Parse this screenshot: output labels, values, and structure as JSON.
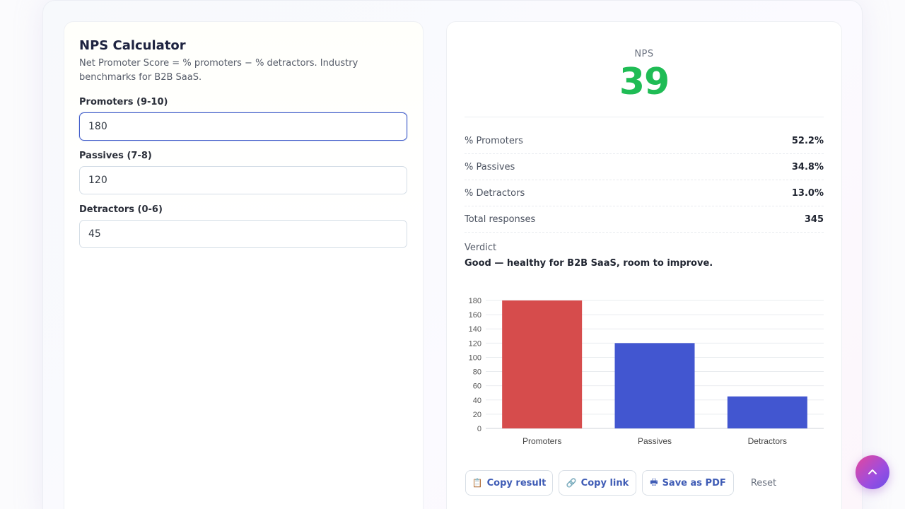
{
  "calculator": {
    "title": "NPS Calculator",
    "description": "Net Promoter Score = % promoters − % detractors. Industry benchmarks for B2B SaaS.",
    "fields": [
      {
        "label": "Promoters (9-10)",
        "value": "180"
      },
      {
        "label": "Passives (7-8)",
        "value": "120"
      },
      {
        "label": "Detractors (0-6)",
        "value": "45"
      }
    ]
  },
  "result": {
    "nps_label": "NPS",
    "nps_value": "39",
    "nps_color": "#1fbc55",
    "stats": [
      {
        "label": "% Promoters",
        "value": "52.2%"
      },
      {
        "label": "% Passives",
        "value": "34.8%"
      },
      {
        "label": "% Detractors",
        "value": "13.0%"
      },
      {
        "label": "Total responses",
        "value": "345"
      }
    ],
    "verdict_label": "Verdict",
    "verdict_text": "Good — healthy for B2B SaaS, room to improve."
  },
  "chart_data": {
    "type": "bar",
    "categories": [
      "Promoters",
      "Passives",
      "Detractors"
    ],
    "values": [
      180,
      120,
      45
    ],
    "colors": [
      "#d64c4c",
      "#4256d0",
      "#4256d0"
    ],
    "yticks": [
      0,
      20,
      40,
      60,
      80,
      100,
      120,
      140,
      160,
      180
    ],
    "ylim": [
      0,
      180
    ],
    "grid": true,
    "title": "",
    "xlabel": "",
    "ylabel": ""
  },
  "actions": {
    "copy_result": "Copy result",
    "copy_link": "Copy link",
    "save_pdf": "Save as PDF",
    "reset": "Reset",
    "copy_result_icon": "clipboard-icon",
    "copy_link_icon": "link-icon",
    "save_pdf_icon": "printer-icon"
  },
  "scroll_top": {
    "icon": "chevron-up-icon"
  }
}
